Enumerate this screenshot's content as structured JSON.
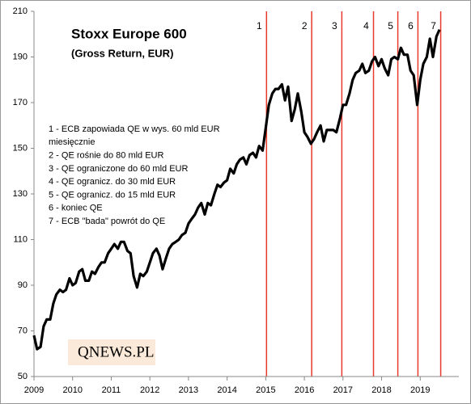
{
  "chart_data": {
    "type": "line",
    "title": "Stoxx Europe 600",
    "subtitle": "(Gross Return, EUR)",
    "watermark": "QNEWS.PL",
    "annotations": [
      "1 - ECB zapowiada QE w wys. 60 mld EUR",
      "miesięcznie",
      "2 - QE rośnie do 80 mld EUR",
      "3 - QE ograniczone do 60 mld EUR",
      "4 - QE ogranicz. do 30 mld EUR",
      "5 - QE ogranicz. do 15 mld EUR",
      "6 - koniec QE",
      "7 - ECB \"bada\" powrót do QE"
    ],
    "events": [
      {
        "x": 2015.02,
        "label": "1"
      },
      {
        "x": 2016.19,
        "label": "2"
      },
      {
        "x": 2016.97,
        "label": "3"
      },
      {
        "x": 2017.79,
        "label": "4"
      },
      {
        "x": 2018.42,
        "label": "5"
      },
      {
        "x": 2018.94,
        "label": "6"
      },
      {
        "x": 2019.53,
        "label": "7"
      }
    ],
    "event_color": "#e8392b",
    "xlim": [
      2009,
      2020
    ],
    "xticks": [
      2009,
      2010,
      2011,
      2012,
      2013,
      2014,
      2015,
      2016,
      2017,
      2018,
      2019
    ],
    "ylim": [
      50,
      210
    ],
    "yticks": [
      50,
      70,
      90,
      110,
      130,
      150,
      170,
      190,
      210
    ],
    "series": [
      {
        "name": "Stoxx Europe 600",
        "color": "#000000",
        "x": [
          2009.0,
          2009.08,
          2009.17,
          2009.25,
          2009.33,
          2009.42,
          2009.5,
          2009.58,
          2009.67,
          2009.75,
          2009.83,
          2009.92,
          2010.0,
          2010.08,
          2010.17,
          2010.25,
          2010.33,
          2010.42,
          2010.5,
          2010.58,
          2010.67,
          2010.75,
          2010.83,
          2010.92,
          2011.0,
          2011.08,
          2011.17,
          2011.25,
          2011.33,
          2011.42,
          2011.5,
          2011.58,
          2011.67,
          2011.75,
          2011.83,
          2011.92,
          2012.0,
          2012.08,
          2012.17,
          2012.25,
          2012.33,
          2012.42,
          2012.5,
          2012.58,
          2012.67,
          2012.75,
          2012.83,
          2012.92,
          2013.0,
          2013.08,
          2013.17,
          2013.25,
          2013.33,
          2013.42,
          2013.5,
          2013.58,
          2013.67,
          2013.75,
          2013.83,
          2013.92,
          2014.0,
          2014.08,
          2014.17,
          2014.25,
          2014.33,
          2014.42,
          2014.5,
          2014.58,
          2014.67,
          2014.75,
          2014.83,
          2014.92,
          2015.0,
          2015.08,
          2015.17,
          2015.25,
          2015.33,
          2015.42,
          2015.5,
          2015.58,
          2015.67,
          2015.75,
          2015.83,
          2015.92,
          2016.0,
          2016.08,
          2016.17,
          2016.25,
          2016.33,
          2016.42,
          2016.5,
          2016.58,
          2016.67,
          2016.75,
          2016.83,
          2016.92,
          2017.0,
          2017.08,
          2017.17,
          2017.25,
          2017.33,
          2017.42,
          2017.5,
          2017.58,
          2017.67,
          2017.75,
          2017.83,
          2017.92,
          2018.0,
          2018.08,
          2018.17,
          2018.25,
          2018.33,
          2018.42,
          2018.5,
          2018.58,
          2018.67,
          2018.75,
          2018.83,
          2018.92,
          2019.0,
          2019.08,
          2019.17,
          2019.25,
          2019.33,
          2019.42,
          2019.5
        ],
        "values": [
          68,
          62,
          63,
          72,
          75,
          75,
          82,
          86,
          88,
          87,
          88,
          93,
          90,
          91,
          96,
          97,
          92,
          92,
          96,
          95,
          98,
          100,
          100,
          104,
          106,
          108,
          106,
          109,
          109,
          105,
          104,
          94,
          89,
          95,
          94,
          96,
          100,
          104,
          106,
          103,
          97,
          102,
          106,
          108,
          109,
          110,
          112,
          113,
          117,
          119,
          121,
          124,
          126,
          121,
          126,
          125,
          130,
          134,
          133,
          135,
          136,
          141,
          139,
          143,
          145,
          146,
          143,
          147,
          148,
          146,
          151,
          149,
          159,
          169,
          174,
          176,
          176,
          178,
          171,
          177,
          162,
          167,
          174,
          166,
          157,
          155,
          152,
          154,
          157,
          160,
          153,
          158,
          158,
          158,
          157,
          163,
          169,
          169,
          174,
          180,
          183,
          184,
          187,
          183,
          184,
          188,
          190,
          186,
          189,
          185,
          182,
          189,
          190,
          189,
          194,
          191,
          191,
          184,
          182,
          169,
          180,
          187,
          190,
          198,
          190,
          199,
          202
        ]
      }
    ]
  }
}
